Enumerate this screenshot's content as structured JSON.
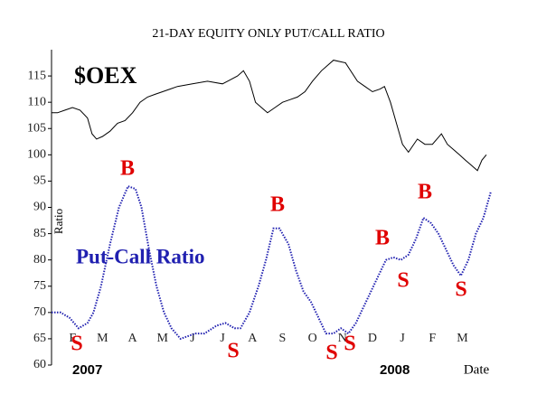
{
  "chart_data": {
    "type": "line",
    "title": "21-DAY EQUITY ONLY PUT/CALL RATIO",
    "ylabel": "Ratio",
    "xlabel": "Date",
    "year_labels": [
      "2007",
      "2008"
    ],
    "xlim": [
      -0.2,
      14.6
    ],
    "xticks": [
      {
        "value": 0.5,
        "label": "F"
      },
      {
        "value": 1.5,
        "label": "M"
      },
      {
        "value": 2.5,
        "label": "A"
      },
      {
        "value": 3.5,
        "label": "M"
      },
      {
        "value": 4.5,
        "label": "J"
      },
      {
        "value": 5.5,
        "label": "J"
      },
      {
        "value": 6.5,
        "label": "A"
      },
      {
        "value": 7.5,
        "label": "S"
      },
      {
        "value": 8.5,
        "label": "O"
      },
      {
        "value": 9.5,
        "label": "N"
      },
      {
        "value": 10.5,
        "label": "D"
      },
      {
        "value": 11.5,
        "label": "J"
      },
      {
        "value": 12.5,
        "label": "F"
      },
      {
        "value": 13.5,
        "label": "M"
      }
    ],
    "ylim": [
      60,
      120
    ],
    "yticks": [
      60,
      65,
      70,
      75,
      80,
      85,
      90,
      95,
      100,
      105,
      110,
      115
    ],
    "series": [
      {
        "name": "$OEX",
        "color": "#000000",
        "x": [
          -0.2,
          0,
          0.25,
          0.5,
          0.75,
          1,
          1.15,
          1.3,
          1.5,
          1.75,
          2,
          2.25,
          2.5,
          2.75,
          3,
          3.25,
          3.5,
          3.75,
          4,
          4.5,
          5,
          5.5,
          6,
          6.2,
          6.4,
          6.6,
          6.8,
          7,
          7.25,
          7.5,
          7.75,
          8,
          8.25,
          8.5,
          8.8,
          9.2,
          9.6,
          10,
          10.25,
          10.5,
          10.75,
          10.9,
          11.1,
          11.3,
          11.5,
          11.7,
          12,
          12.25,
          12.5,
          12.8,
          13,
          13.2,
          13.4,
          13.6,
          13.8,
          14,
          14.15,
          14.3
        ],
        "values": [
          108,
          108,
          108.5,
          109,
          108.5,
          107,
          104,
          103,
          103.5,
          104.5,
          106,
          106.5,
          108,
          110,
          111,
          111.5,
          112,
          112.5,
          113,
          113.5,
          114,
          113.5,
          115,
          116,
          114,
          110,
          109,
          108,
          109,
          110,
          110.5,
          111,
          112,
          114,
          116,
          118,
          117.5,
          114,
          113,
          112,
          112.5,
          113,
          110,
          106,
          102,
          100.5,
          103,
          102,
          102,
          104,
          102,
          101,
          100,
          99,
          98,
          97,
          99,
          100
        ]
      },
      {
        "name": "Put-Call Ratio",
        "color": "#2020b0",
        "x": [
          -0.2,
          0.1,
          0.4,
          0.7,
          1,
          1.2,
          1.45,
          1.75,
          2.05,
          2.35,
          2.6,
          2.8,
          3.05,
          3.3,
          3.55,
          3.8,
          4.1,
          4.6,
          4.9,
          5.3,
          5.6,
          5.9,
          6.1,
          6.4,
          6.7,
          6.95,
          7.2,
          7.4,
          7.7,
          7.95,
          8.2,
          8.45,
          8.7,
          8.95,
          9.2,
          9.45,
          9.7,
          9.95,
          10.2,
          10.45,
          10.7,
          10.95,
          11.2,
          11.45,
          11.7,
          11.95,
          12.2,
          12.45,
          12.7,
          12.95,
          13.2,
          13.45,
          13.7,
          13.95,
          14.2,
          14.45
        ],
        "values": [
          70,
          70,
          69,
          67,
          68,
          70,
          75,
          83,
          90,
          94,
          93.5,
          90,
          82,
          75,
          70,
          67,
          65,
          66,
          66,
          67.5,
          68,
          67,
          67,
          70,
          75,
          80,
          86,
          86,
          83,
          78,
          74,
          72,
          69,
          66,
          66,
          67,
          66,
          68,
          71,
          74,
          77,
          80,
          80.5,
          80,
          81,
          84,
          88,
          87,
          85,
          82,
          79,
          77,
          80,
          85,
          88,
          93
        ]
      }
    ],
    "signals": [
      "S",
      "B",
      "S",
      "B",
      "S",
      "S",
      "B",
      "S",
      "B",
      "S"
    ],
    "signal_color": "#e00000"
  }
}
